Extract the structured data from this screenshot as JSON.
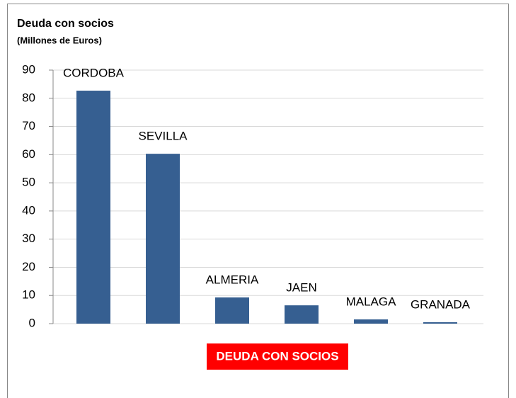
{
  "chart_data": {
    "type": "bar",
    "title": "Deuda con socios",
    "subtitle": "(Millones de Euros)",
    "x_label": "DEUDA CON SOCIOS",
    "categories": [
      "CORDOBA",
      "SEVILLA",
      "ALMERIA",
      "JAEN",
      "MALAGA",
      "GRANADA"
    ],
    "values": [
      82.7,
      60.3,
      9.3,
      6.5,
      1.5,
      0.5
    ],
    "color": "#365f91",
    "ylim": [
      0,
      90
    ],
    "yticks": [
      0,
      10,
      20,
      30,
      40,
      50,
      60,
      70,
      80,
      90
    ],
    "grid": true
  }
}
